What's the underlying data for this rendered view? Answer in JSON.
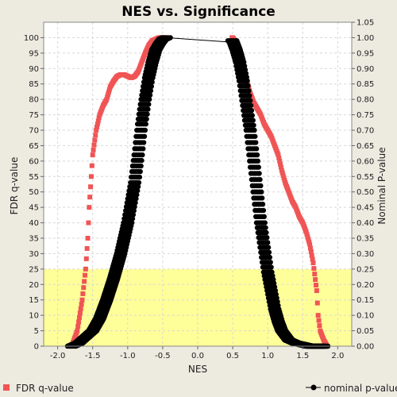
{
  "chart_data": {
    "type": "scatter",
    "title": "NES vs. Significance",
    "xlabel": "NES",
    "ylabel_left": "FDR q-value",
    "ylabel_right": "Nominal P-value",
    "xlim": [
      -2.2,
      2.2
    ],
    "ylim_left": [
      0,
      105
    ],
    "ylim_right": [
      0,
      1.05
    ],
    "x_ticks": [
      "-2.0",
      "-1.5",
      "-1.0",
      "-0.5",
      "0.0",
      "0.5",
      "1.0",
      "1.5",
      "2.0"
    ],
    "y_ticks_left": [
      "0",
      "5",
      "10",
      "15",
      "20",
      "25",
      "30",
      "35",
      "40",
      "45",
      "50",
      "55",
      "60",
      "65",
      "70",
      "75",
      "80",
      "85",
      "90",
      "95",
      "100"
    ],
    "y_ticks_right": [
      "0.00",
      "0.05",
      "0.10",
      "0.15",
      "0.20",
      "0.25",
      "0.30",
      "0.35",
      "0.40",
      "0.45",
      "0.50",
      "0.55",
      "0.60",
      "0.65",
      "0.70",
      "0.75",
      "0.80",
      "0.85",
      "0.90",
      "0.95",
      "1.00",
      "1.05"
    ],
    "grid": true,
    "highlight_band": {
      "y_from": 0,
      "y_to": 25,
      "color": "#FFFF99"
    },
    "legend_position": "bottom",
    "series": [
      {
        "name": "FDR q-value",
        "axis": "left",
        "color": "#F05555",
        "x": [
          -1.8,
          -1.72,
          -1.65,
          -1.6,
          -1.57,
          -1.55,
          -1.52,
          -1.5,
          -1.45,
          -1.4,
          -1.35,
          -1.3,
          -1.25,
          -1.2,
          -1.15,
          -1.1,
          -1.05,
          -1.0,
          -0.95,
          -0.9,
          -0.85,
          -0.8,
          -0.75,
          -0.7,
          -0.65,
          -0.6,
          -0.55,
          -0.5,
          -0.45,
          0.5,
          0.55,
          0.6,
          0.65,
          0.7,
          0.75,
          0.8,
          0.85,
          0.9,
          0.95,
          1.0,
          1.05,
          1.1,
          1.15,
          1.2,
          1.25,
          1.3,
          1.35,
          1.4,
          1.45,
          1.5,
          1.55,
          1.6,
          1.65,
          1.7,
          1.72,
          1.75,
          1.8,
          1.85
        ],
        "values": [
          0,
          5,
          15,
          25,
          35,
          45,
          55,
          62,
          70,
          75,
          78,
          80,
          84,
          86,
          87.5,
          88,
          88,
          87.5,
          87,
          87.5,
          89,
          92,
          95,
          97.5,
          99,
          99.5,
          100,
          100,
          100,
          100,
          98.5,
          95,
          90,
          86,
          82,
          79,
          77,
          75,
          72,
          70,
          68,
          65,
          62,
          57,
          53,
          50,
          47,
          45,
          42,
          40,
          37,
          33,
          27,
          18,
          10,
          5,
          2,
          0
        ]
      },
      {
        "name": "nominal p-value",
        "axis": "right",
        "color": "#000000",
        "x": [
          -1.8,
          -1.7,
          -1.6,
          -1.5,
          -1.4,
          -1.3,
          -1.2,
          -1.1,
          -1.0,
          -0.9,
          -0.85,
          -0.8,
          -0.75,
          -0.7,
          -0.65,
          -0.6,
          -0.55,
          -0.5,
          -0.45,
          0.5,
          0.55,
          0.6,
          0.65,
          0.7,
          0.75,
          0.8,
          0.85,
          0.9,
          0.95,
          1.0,
          1.05,
          1.1,
          1.15,
          1.2,
          1.3,
          1.4,
          1.5,
          1.6,
          1.7,
          1.8
        ],
        "values": [
          0,
          0.01,
          0.03,
          0.05,
          0.09,
          0.15,
          0.22,
          0.3,
          0.4,
          0.53,
          0.62,
          0.72,
          0.8,
          0.87,
          0.92,
          0.96,
          0.98,
          0.995,
          1.0,
          0.99,
          0.96,
          0.92,
          0.86,
          0.78,
          0.7,
          0.6,
          0.5,
          0.4,
          0.32,
          0.24,
          0.18,
          0.12,
          0.08,
          0.05,
          0.02,
          0.01,
          0.005,
          0,
          0,
          0
        ]
      }
    ]
  }
}
